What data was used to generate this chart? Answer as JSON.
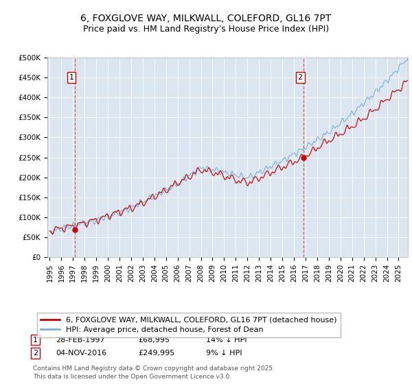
{
  "title": "6, FOXGLOVE WAY, MILKWALL, COLEFORD, GL16 7PT",
  "subtitle": "Price paid vs. HM Land Registry's House Price Index (HPI)",
  "plot_background": "#dce6f1",
  "line1_color": "#cc0000",
  "line2_color": "#7ab0d4",
  "ylim": [
    0,
    500000
  ],
  "yticks": [
    0,
    50000,
    100000,
    150000,
    200000,
    250000,
    300000,
    350000,
    400000,
    450000,
    500000
  ],
  "ytick_labels": [
    "£0",
    "£50K",
    "£100K",
    "£150K",
    "£200K",
    "£250K",
    "£300K",
    "£350K",
    "£400K",
    "£450K",
    "£500K"
  ],
  "xlim_start": 1994.8,
  "xlim_end": 2025.8,
  "xticks": [
    1995,
    1996,
    1997,
    1998,
    1999,
    2000,
    2001,
    2002,
    2003,
    2004,
    2005,
    2006,
    2007,
    2008,
    2009,
    2010,
    2011,
    2012,
    2013,
    2014,
    2015,
    2016,
    2017,
    2018,
    2019,
    2020,
    2021,
    2022,
    2023,
    2024,
    2025
  ],
  "sale1_x": 1997.16,
  "sale1_y": 68995,
  "sale2_x": 2016.84,
  "sale2_y": 249995,
  "legend_line1": "6, FOXGLOVE WAY, MILKWALL, COLEFORD, GL16 7PT (detached house)",
  "legend_line2": "HPI: Average price, detached house, Forest of Dean",
  "note1_date": "28-FEB-1997",
  "note1_price": "£68,995",
  "note1_change": "14% ↓ HPI",
  "note2_date": "04-NOV-2016",
  "note2_price": "£249,995",
  "note2_change": "9% ↓ HPI",
  "footer": "Contains HM Land Registry data © Crown copyright and database right 2025.\nThis data is licensed under the Open Government Licence v3.0.",
  "title_fontsize": 10,
  "tick_fontsize": 7.5,
  "legend_fontsize": 8,
  "annotation_fontsize": 8,
  "footer_fontsize": 6.5
}
